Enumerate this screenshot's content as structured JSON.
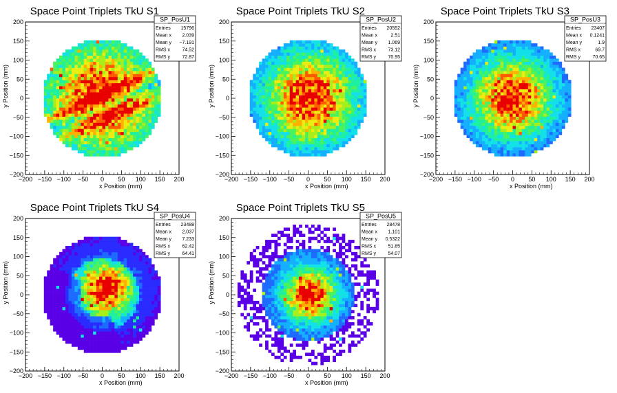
{
  "chart_data": [
    {
      "type": "heatmap",
      "title": "Space Point Triplets TkU S1",
      "xlabel": "x Position (mm)",
      "ylabel": "y Position (mm)",
      "xlim": [
        -200,
        200
      ],
      "ylim": [
        -200,
        200
      ],
      "x_ticks": [
        "−200",
        "−150",
        "−100",
        "−50",
        "0",
        "50",
        "100",
        "150",
        "200"
      ],
      "y_ticks": [
        "−200",
        "−150",
        "−100",
        "−50",
        "0",
        "50",
        "100",
        "150",
        "200"
      ],
      "stats": {
        "name": "SP_PosU1",
        "rows": [
          [
            "Entries",
            "15796"
          ],
          [
            "Mean x",
            "2.039"
          ],
          [
            "Mean y",
            "−7.191"
          ],
          [
            "RMS x",
            "74.52"
          ],
          [
            "RMS y",
            "72.87"
          ]
        ]
      },
      "distribution": {
        "radius_mm": 155,
        "peak_x": 0,
        "peak_y": 0,
        "sigma": 75,
        "pattern": "diagonal-band",
        "halo": false
      }
    },
    {
      "type": "heatmap",
      "title": "Space Point Triplets TkU S2",
      "xlabel": "x Position (mm)",
      "ylabel": "y Position (mm)",
      "xlim": [
        -200,
        200
      ],
      "ylim": [
        -200,
        200
      ],
      "x_ticks": [
        "−200",
        "−150",
        "−100",
        "−50",
        "0",
        "50",
        "100",
        "150",
        "200"
      ],
      "y_ticks": [
        "−200",
        "−150",
        "−100",
        "−50",
        "0",
        "50",
        "100",
        "150",
        "200"
      ],
      "stats": {
        "name": "SP_PosU2",
        "rows": [
          [
            "Entries",
            "20552"
          ],
          [
            "Mean x",
            "2.51"
          ],
          [
            "Mean y",
            "1.069"
          ],
          [
            "RMS x",
            "73.12"
          ],
          [
            "RMS y",
            "70.95"
          ]
        ]
      },
      "distribution": {
        "radius_mm": 155,
        "peak_x": 5,
        "peak_y": 0,
        "sigma": 80,
        "pattern": "gaussian",
        "halo": false
      }
    },
    {
      "type": "heatmap",
      "title": "Space Point Triplets TkU S3",
      "xlabel": "x Position (mm)",
      "ylabel": "y Position (mm)",
      "xlim": [
        -200,
        200
      ],
      "ylim": [
        -200,
        200
      ],
      "x_ticks": [
        "−200",
        "−150",
        "−100",
        "−50",
        "0",
        "50",
        "100",
        "150",
        "200"
      ],
      "y_ticks": [
        "−200",
        "−150",
        "−100",
        "−50",
        "0",
        "50",
        "100",
        "150",
        "200"
      ],
      "stats": {
        "name": "SP_PosU3",
        "rows": [
          [
            "Entries",
            "23407"
          ],
          [
            "Mean x",
            "0.1241"
          ],
          [
            "Mean y",
            "1.9"
          ],
          [
            "RMS x",
            "69.7"
          ],
          [
            "RMS y",
            "70.65"
          ]
        ]
      },
      "distribution": {
        "radius_mm": 155,
        "peak_x": 0,
        "peak_y": 0,
        "sigma": 70,
        "pattern": "gaussian",
        "halo": false
      }
    },
    {
      "type": "heatmap",
      "title": "Space Point Triplets TkU S4",
      "xlabel": "x Position (mm)",
      "ylabel": "y Position (mm)",
      "xlim": [
        -200,
        200
      ],
      "ylim": [
        -200,
        200
      ],
      "x_ticks": [
        "−200",
        "−150",
        "−100",
        "−50",
        "0",
        "50",
        "100",
        "150",
        "200"
      ],
      "y_ticks": [
        "−200",
        "−150",
        "−100",
        "−50",
        "0",
        "50",
        "100",
        "150",
        "200"
      ],
      "stats": {
        "name": "SP_PosU4",
        "rows": [
          [
            "Entries",
            "23488"
          ],
          [
            "Mean x",
            "2.037"
          ],
          [
            "Mean y",
            "7.233"
          ],
          [
            "RMS x",
            "62.42"
          ],
          [
            "RMS y",
            "64.41"
          ]
        ]
      },
      "distribution": {
        "radius_mm": 155,
        "peak_x": 10,
        "peak_y": 15,
        "sigma": 55,
        "pattern": "triangle",
        "halo": false
      }
    },
    {
      "type": "heatmap",
      "title": "Space Point Triplets TkU S5",
      "xlabel": "x Position (mm)",
      "ylabel": "y Position (mm)",
      "xlim": [
        -200,
        200
      ],
      "ylim": [
        -200,
        200
      ],
      "x_ticks": [
        "−200",
        "−150",
        "−100",
        "−50",
        "0",
        "50",
        "100",
        "150",
        "200"
      ],
      "y_ticks": [
        "−200",
        "−150",
        "−100",
        "−50",
        "0",
        "50",
        "100",
        "150",
        "200"
      ],
      "stats": {
        "name": "SP_PosU5",
        "rows": [
          [
            "Entries",
            "28478"
          ],
          [
            "Mean x",
            "1.101"
          ],
          [
            "Mean y",
            "0.5322"
          ],
          [
            "RMS x",
            "51.85"
          ],
          [
            "RMS y",
            "54.07"
          ]
        ]
      },
      "distribution": {
        "radius_mm": 120,
        "peak_x": 5,
        "peak_y": 0,
        "sigma": 48,
        "pattern": "gaussian",
        "halo": true
      }
    }
  ],
  "colors": {
    "palette": [
      "#5a00e6",
      "#2a2cff",
      "#1e6bff",
      "#14b0ff",
      "#13e0e8",
      "#1ef0a0",
      "#4cf25a",
      "#a6ee1c",
      "#ecec12",
      "#ffb000",
      "#ff5a00",
      "#e80000"
    ],
    "background": "#ffffff",
    "frame": "#000000",
    "stats_border": "#000000"
  }
}
